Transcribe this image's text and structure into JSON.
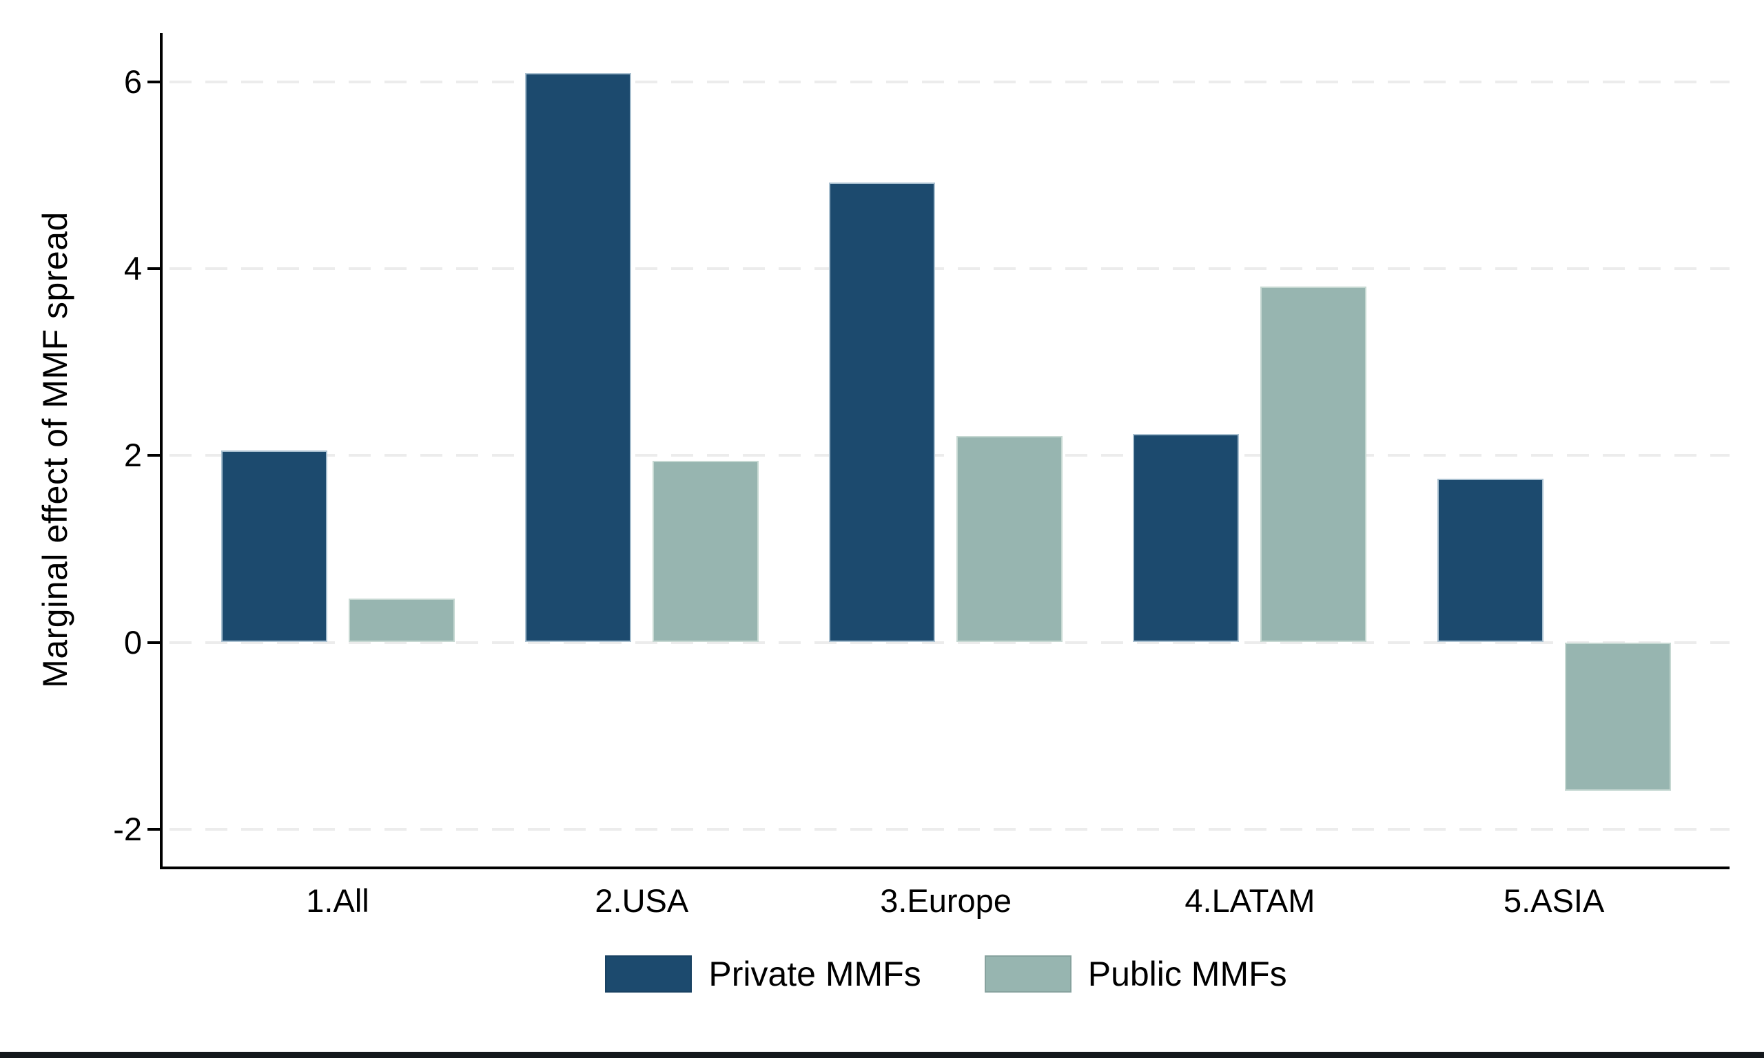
{
  "chart_data": {
    "type": "bar",
    "title": "",
    "ylabel": "Marginal effect of MMF spread",
    "xlabel": "",
    "categories": [
      "1.All",
      "2.USA",
      "3.Europe",
      "4.LATAM",
      "5.ASIA"
    ],
    "series": [
      {
        "name": "Private MMFs",
        "color": "#1c4a6e",
        "edge_color": "#a9c0d0",
        "values": [
          2.05,
          6.09,
          4.92,
          2.23,
          1.75
        ]
      },
      {
        "name": "Public MMFs",
        "color": "#97b5b0",
        "edge_color": "#c6d8d2",
        "values": [
          0.47,
          1.94,
          2.21,
          3.81,
          -1.59
        ]
      }
    ],
    "yticks": [
      -2,
      0,
      2,
      4,
      6
    ],
    "ylim": [
      -2.4,
      6.5
    ],
    "grid": true,
    "grid_color": "#ececec",
    "axis_color": "#000000",
    "text_color": "#000000",
    "legend_position": "bottom",
    "bottom_rule_color": "#14181c"
  }
}
